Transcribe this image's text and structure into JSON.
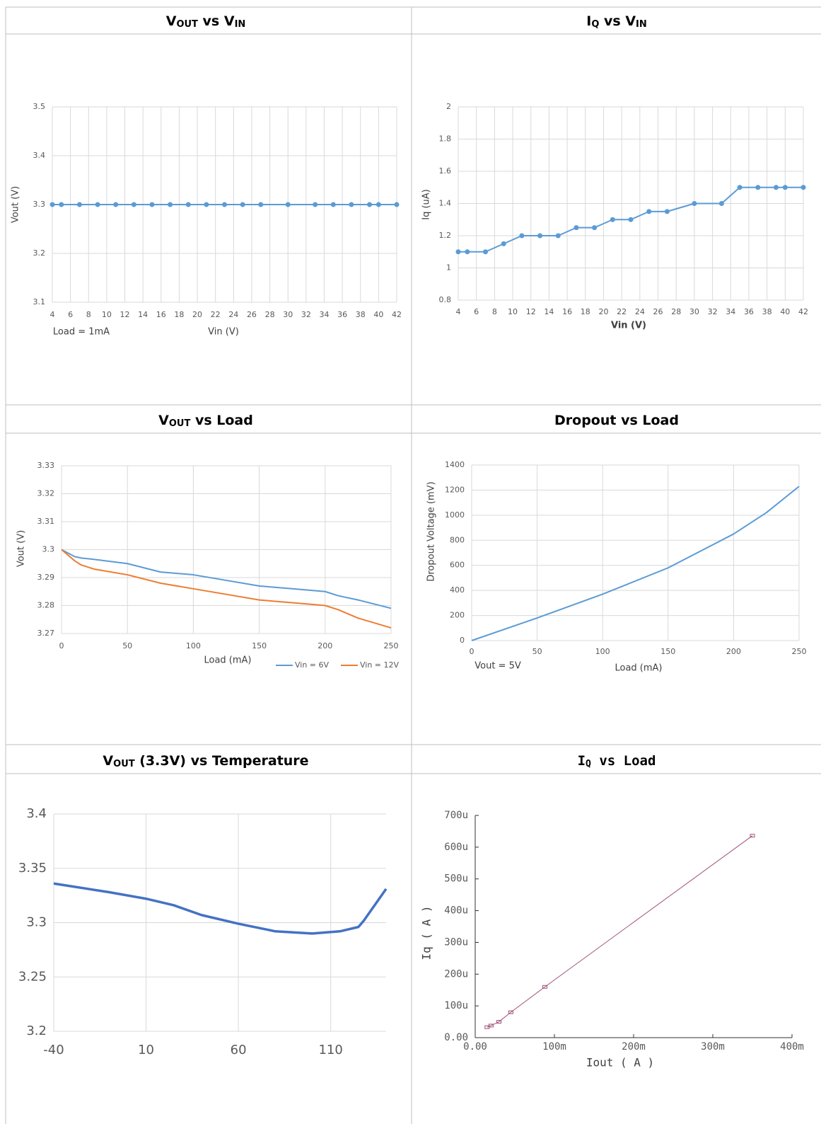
{
  "chart_data": [
    {
      "type": "line",
      "heading": [
        "V",
        "OUT",
        " vs V",
        "IN"
      ],
      "ylabel": "Vout (V)",
      "xlabel": "Vin (V)",
      "annotation": "Load = 1mA",
      "markers": true,
      "grid": true,
      "x": [
        4,
        5,
        7,
        9,
        11,
        13,
        15,
        17,
        19,
        21,
        23,
        25,
        27,
        30,
        33,
        35,
        37,
        39,
        40,
        42
      ],
      "series": [
        {
          "color": "#5b9bd5",
          "values": [
            3.3,
            3.3,
            3.3,
            3.3,
            3.3,
            3.3,
            3.3,
            3.3,
            3.3,
            3.3,
            3.3,
            3.3,
            3.3,
            3.3,
            3.3,
            3.3,
            3.3,
            3.3,
            3.3,
            3.3
          ]
        }
      ],
      "xlim": [
        4,
        42
      ],
      "xticks": [
        4,
        6,
        8,
        10,
        12,
        14,
        16,
        18,
        20,
        22,
        24,
        26,
        28,
        30,
        32,
        34,
        36,
        38,
        40,
        42
      ],
      "ylim": [
        3.1,
        3.5
      ],
      "yticks": [
        3.1,
        3.2,
        3.3,
        3.4,
        3.5
      ]
    },
    {
      "type": "line",
      "heading": [
        "I",
        "Q",
        " vs V",
        "IN"
      ],
      "ylabel": "Iq (uA)",
      "xlabel": "Vin (V)",
      "markers": true,
      "grid": true,
      "x": [
        4,
        5,
        7,
        9,
        11,
        13,
        15,
        17,
        19,
        21,
        23,
        25,
        27,
        30,
        33,
        35,
        37,
        39,
        40,
        42
      ],
      "series": [
        {
          "color": "#5b9bd5",
          "values": [
            1.1,
            1.1,
            1.1,
            1.15,
            1.2,
            1.2,
            1.2,
            1.25,
            1.25,
            1.3,
            1.3,
            1.35,
            1.35,
            1.4,
            1.4,
            1.5,
            1.5,
            1.5,
            1.5,
            1.5
          ]
        }
      ],
      "xlim": [
        4,
        42
      ],
      "xticks": [
        4,
        6,
        8,
        10,
        12,
        14,
        16,
        18,
        20,
        22,
        24,
        26,
        28,
        30,
        32,
        34,
        36,
        38,
        40,
        42
      ],
      "ylim": [
        0.8,
        2
      ],
      "yticks": [
        0.8,
        1,
        1.2,
        1.4,
        1.6,
        1.8,
        2
      ]
    },
    {
      "type": "line",
      "heading": [
        "V",
        "OUT",
        " vs Load"
      ],
      "ylabel": "Vout (V)",
      "xlabel": "Load (mA)",
      "markers": false,
      "grid": true,
      "x": [
        0,
        10,
        15,
        25,
        50,
        75,
        100,
        125,
        150,
        175,
        200,
        210,
        225,
        250
      ],
      "series": [
        {
          "name": "Vin = 6V",
          "color": "#5b9bd5",
          "values": [
            3.3,
            3.2975,
            3.297,
            3.2965,
            3.295,
            3.292,
            3.291,
            3.289,
            3.287,
            3.286,
            3.285,
            3.2835,
            3.282,
            3.279
          ]
        },
        {
          "name": "Vin = 12V",
          "color": "#ed7d31",
          "values": [
            3.3,
            3.296,
            3.2945,
            3.293,
            3.291,
            3.288,
            3.286,
            3.284,
            3.282,
            3.281,
            3.28,
            3.2785,
            3.2755,
            3.272
          ]
        }
      ],
      "xlim": [
        0,
        250
      ],
      "xticks": [
        0,
        50,
        100,
        150,
        200,
        250
      ],
      "ylim": [
        3.27,
        3.33
      ],
      "yticks": [
        3.27,
        3.28,
        3.29,
        3.3,
        3.31,
        3.32,
        3.33
      ]
    },
    {
      "type": "line",
      "heading": [
        "Dropout vs Load"
      ],
      "ylabel": "Dropout Voltage (mV)",
      "xlabel": "Load (mA)",
      "annotation": "Vout = 5V",
      "markers": false,
      "grid": true,
      "x": [
        0,
        50,
        100,
        150,
        200,
        225,
        250
      ],
      "series": [
        {
          "color": "#5b9bd5",
          "values": [
            0,
            180,
            370,
            580,
            850,
            1020,
            1230
          ]
        }
      ],
      "xlim": [
        0,
        250
      ],
      "xticks": [
        0,
        50,
        100,
        150,
        200,
        250
      ],
      "ylim": [
        0,
        1400
      ],
      "yticks": [
        0,
        200,
        400,
        600,
        800,
        1000,
        1200,
        1400
      ]
    },
    {
      "type": "line",
      "heading": [
        "V",
        "OUT",
        " (3.3V) vs Temperature"
      ],
      "markers": false,
      "grid": true,
      "x": [
        -40,
        -10,
        10,
        25,
        40,
        60,
        80,
        100,
        115,
        125,
        128,
        140
      ],
      "series": [
        {
          "color": "#4472c4",
          "values": [
            3.336,
            3.328,
            3.322,
            3.316,
            3.307,
            3.299,
            3.292,
            3.29,
            3.292,
            3.296,
            3.302,
            3.331
          ]
        }
      ],
      "xlim": [
        -40,
        140
      ],
      "xticks": [
        -40,
        10,
        60,
        110
      ],
      "ylim": [
        3.2,
        3.4
      ],
      "yticks": [
        3.2,
        3.25,
        3.3,
        3.35,
        3.4
      ]
    },
    {
      "type": "line",
      "heading": [
        "I",
        "Q",
        " vs Load"
      ],
      "ylabel": "Iq ( A )",
      "xlabel": "Iout ( A )",
      "markers": true,
      "grid": false,
      "x": [
        0.015,
        0.02,
        0.03,
        0.045,
        0.088,
        0.35
      ],
      "series": [
        {
          "color": "#a0507a",
          "values": [
            3.3e-05,
            3.8e-05,
            5e-05,
            8e-05,
            0.00016,
            0.000636
          ]
        }
      ],
      "xlim": [
        0,
        0.4
      ],
      "xticks": [
        {
          "value": 0,
          "label": "0.00"
        },
        {
          "value": 0.1,
          "label": "100m"
        },
        {
          "value": 0.2,
          "label": "200m"
        },
        {
          "value": 0.3,
          "label": "300m"
        },
        {
          "value": 0.4,
          "label": "400m"
        }
      ],
      "ylim": [
        0,
        0.0007
      ],
      "yticks": [
        {
          "value": 0,
          "label": "0.00"
        },
        {
          "value": 0.0001,
          "label": "100u"
        },
        {
          "value": 0.0002,
          "label": "200u"
        },
        {
          "value": 0.0003,
          "label": "300u"
        },
        {
          "value": 0.0004,
          "label": "400u"
        },
        {
          "value": 0.0005,
          "label": "500u"
        },
        {
          "value": 0.0006,
          "label": "600u"
        },
        {
          "value": 0.0007,
          "label": "700u"
        }
      ]
    }
  ]
}
